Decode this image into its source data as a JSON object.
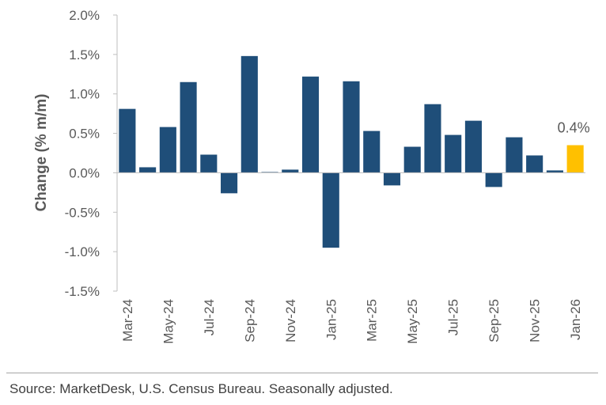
{
  "chart_data": {
    "type": "bar",
    "ylabel": "Change (% m/m)",
    "xlabel": "",
    "ylim": [
      -1.5,
      2.0
    ],
    "yticks": [
      "2.0%",
      "1.5%",
      "1.0%",
      "0.5%",
      "0.0%",
      "-0.5%",
      "-1.0%",
      "-1.5%"
    ],
    "ytick_values": [
      2.0,
      1.5,
      1.0,
      0.5,
      0.0,
      -0.5,
      -1.0,
      -1.5
    ],
    "categories": [
      "Mar-24",
      "Apr-24",
      "May-24",
      "Jun-24",
      "Jul-24",
      "Aug-24",
      "Sep-24",
      "Oct-24",
      "Nov-24",
      "Dec-24",
      "Jan-25",
      "Feb-25",
      "Mar-25",
      "Apr-25",
      "May-25",
      "Jun-25",
      "Jul-25",
      "Aug-25",
      "Sep-25",
      "Oct-25",
      "Nov-25",
      "Dec-25",
      "Jan-26"
    ],
    "xtick_labels": [
      "Mar-24",
      "May-24",
      "Jul-24",
      "Sep-24",
      "Nov-24",
      "Jan-25",
      "Mar-25",
      "May-25",
      "Jul-25",
      "Sep-25",
      "Nov-25",
      "Jan-26"
    ],
    "values": [
      0.81,
      0.07,
      0.58,
      1.15,
      0.23,
      -0.26,
      1.48,
      0.01,
      0.04,
      1.22,
      -0.95,
      1.16,
      0.53,
      -0.16,
      0.33,
      0.87,
      0.48,
      0.66,
      -0.18,
      0.45,
      0.22,
      0.03,
      0.35
    ],
    "bar_color": "#1f4e79",
    "highlight_color": "#ffc000",
    "highlight_index": 22,
    "data_label": "0.4%",
    "grid": false
  },
  "source": "Source: MarketDesk, U.S. Census Bureau. Seasonally adjusted."
}
